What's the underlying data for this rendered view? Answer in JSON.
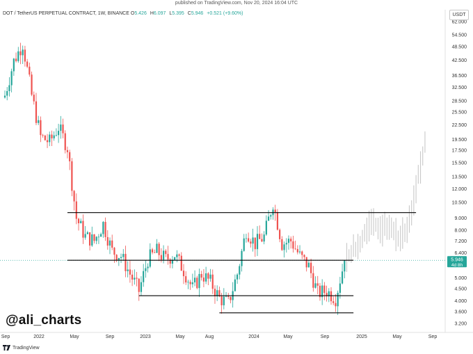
{
  "header": {
    "published": "published on TradingView.com, Nov 20, 2024 16:04 UTC",
    "symbol": "DOT / TetherUS PERPETUAL CONTRACT, 1W, BINANCE",
    "open_label": "O",
    "open_value": "5.426",
    "high_label": "H",
    "high_value": "6.097",
    "low_label": "L",
    "low_value": "5.395",
    "close_label": "C",
    "close_value": "5.946",
    "change": "+0.521 (+9.60%)",
    "currency": "USDT"
  },
  "watermark": "@ali_charts",
  "footer": {
    "brand": "TradingView"
  },
  "colors": {
    "up": "#26a69a",
    "down": "#ef5350",
    "projection": "#c8c8c8",
    "level_line": "#000000",
    "price_line": "#26a69a"
  },
  "chart_data": {
    "type": "candlestick",
    "scale": "log",
    "price_axis_ticks": [
      "62.000",
      "54.500",
      "48.500",
      "42.500",
      "36.500",
      "32.500",
      "28.500",
      "25.500",
      "22.500",
      "19.500",
      "17.500",
      "15.500",
      "13.500",
      "12.000",
      "10.500",
      "9.000",
      "8.000",
      "7.200",
      "6.400",
      "5.946",
      "5.000",
      "4.500",
      "4.000",
      "3.600",
      "3.200"
    ],
    "time_axis_labels": [
      "Sep",
      "2022",
      "May",
      "Sep",
      "2023",
      "May",
      "Aug",
      "2024",
      "May",
      "Sep",
      "2025",
      "May",
      "Sep"
    ],
    "last_price": {
      "value": "5.946",
      "countdown": "4d 8h"
    },
    "horizontal_levels": [
      {
        "price": 9.5,
        "from": "2022-04",
        "to": "2025-07"
      },
      {
        "price": 5.95,
        "from": "2022-04",
        "to": "2024-12"
      },
      {
        "price": 4.2,
        "from": "2022-12",
        "to": "2024-12"
      },
      {
        "price": 3.55,
        "from": "2023-09",
        "to": "2024-12"
      }
    ],
    "price_path_waypoints": [
      [
        "2021-09",
        30
      ],
      [
        "2021-10",
        42
      ],
      [
        "2021-11",
        50
      ],
      [
        "2021-12",
        30
      ],
      [
        "2022-01",
        20
      ],
      [
        "2022-02",
        19
      ],
      [
        "2022-03",
        22
      ],
      [
        "2022-04",
        18
      ],
      [
        "2022-05",
        9
      ],
      [
        "2022-06",
        7.5
      ],
      [
        "2022-07",
        7.2
      ],
      [
        "2022-08",
        8.5
      ],
      [
        "2022-09",
        6.5
      ],
      [
        "2022-10",
        6.2
      ],
      [
        "2022-11",
        5.2
      ],
      [
        "2022-12",
        4.4
      ],
      [
        "2023-01",
        6.0
      ],
      [
        "2023-02",
        6.5
      ],
      [
        "2023-03",
        6.0
      ],
      [
        "2023-04",
        6.3
      ],
      [
        "2023-05",
        5.4
      ],
      [
        "2023-06",
        4.5
      ],
      [
        "2023-07",
        5.2
      ],
      [
        "2023-08",
        4.8
      ],
      [
        "2023-09",
        4.1
      ],
      [
        "2023-10",
        3.9
      ],
      [
        "2023-11",
        5.2
      ],
      [
        "2023-12",
        8.0
      ],
      [
        "2024-01",
        7.0
      ],
      [
        "2024-02",
        7.5
      ],
      [
        "2024-03",
        10.5
      ],
      [
        "2024-04",
        7.0
      ],
      [
        "2024-05",
        7.2
      ],
      [
        "2024-06",
        6.2
      ],
      [
        "2024-07",
        5.6
      ],
      [
        "2024-08",
        4.3
      ],
      [
        "2024-09",
        4.4
      ],
      [
        "2024-10",
        4.1
      ],
      [
        "2024-11",
        5.946
      ]
    ],
    "projection_waypoints": [
      [
        "2024-11",
        5.946
      ],
      [
        "2025-01",
        7.2
      ],
      [
        "2025-02",
        9.0
      ],
      [
        "2025-03",
        8.0
      ],
      [
        "2025-04",
        8.5
      ],
      [
        "2025-05",
        7.5
      ],
      [
        "2025-06",
        8.0
      ],
      [
        "2025-07",
        12.0
      ],
      [
        "2025-08",
        19.0
      ]
    ]
  }
}
